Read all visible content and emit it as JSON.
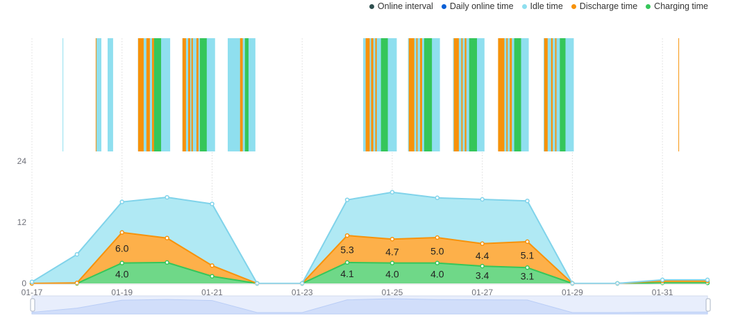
{
  "legend": [
    {
      "name": "Online interval",
      "color": "#2f4f4f"
    },
    {
      "name": "Daily online time",
      "color": "#0a5fd6"
    },
    {
      "name": "Idle time",
      "color": "#8fdfef"
    },
    {
      "name": "Discharge time",
      "color": "#f7920a"
    },
    {
      "name": "Charging time",
      "color": "#35c65a"
    }
  ],
  "chart_data": {
    "type": "area",
    "stacked": true,
    "categories": [
      "01-17",
      "01-18",
      "01-19",
      "01-20",
      "01-21",
      "01-22",
      "01-23",
      "01-24",
      "01-25",
      "01-26",
      "01-27",
      "01-28",
      "01-29",
      "01-30",
      "01-31",
      "02-01"
    ],
    "x_tick_labels": [
      "01-17",
      "01-19",
      "01-21",
      "01-23",
      "01-25",
      "01-27",
      "01-29",
      "01-31"
    ],
    "y_ticks": [
      "0",
      "12",
      "24"
    ],
    "ylim": [
      0,
      24
    ],
    "grid": "vertical",
    "legend_position": "top-right",
    "series": [
      {
        "name": "Charging time",
        "color": "#35c65a",
        "fill": "#6fd888",
        "values": [
          0,
          0,
          4.0,
          4.1,
          1.4,
          0,
          0,
          4.1,
          4.0,
          4.0,
          3.4,
          3.1,
          0,
          0,
          0.1,
          0.1
        ],
        "labels": [
          null,
          null,
          "4.0",
          null,
          null,
          null,
          null,
          "4.1",
          "4.0",
          "4.0",
          "3.4",
          "3.1",
          null,
          null,
          null,
          null
        ]
      },
      {
        "name": "Discharge time",
        "color": "#f7920a",
        "fill": "#fdb04a",
        "values": [
          0,
          0.1,
          6.0,
          4.8,
          2.1,
          0,
          0,
          5.3,
          4.7,
          5.0,
          4.4,
          5.1,
          0,
          0,
          0.4,
          0.4
        ],
        "labels": [
          null,
          null,
          "6.0",
          null,
          null,
          null,
          null,
          "5.3",
          "4.7",
          "5.0",
          "4.4",
          "5.1",
          null,
          null,
          null,
          null
        ]
      },
      {
        "name": "Idle time",
        "color": "#80d3ea",
        "fill": "#b0e9f4",
        "values": [
          0.3,
          5.6,
          6.0,
          8.0,
          12.1,
          0,
          0,
          7.0,
          9.2,
          7.8,
          8.7,
          8.0,
          0,
          0,
          0.2,
          0.2
        ],
        "labels": []
      }
    ],
    "online_intervals": [
      [
        "01-17 16:20",
        "01-17 16:40",
        "idle"
      ],
      [
        "01-18 10:00",
        "01-18 13:00",
        "idle"
      ],
      [
        "01-18 10:00",
        "01-18 10:15",
        "discharge"
      ],
      [
        "01-18 16:20",
        "01-18 19:15",
        "idle"
      ],
      [
        "01-19 08:30",
        "01-20 01:40",
        "idle"
      ],
      [
        "01-19 08:34",
        "01-19 11:32",
        "discharge"
      ],
      [
        "01-19 13:00",
        "01-19 14:50",
        "discharge"
      ],
      [
        "01-19 16:00",
        "01-19 17:05",
        "discharge"
      ],
      [
        "01-19 17:05",
        "01-19 20:50",
        "charging"
      ],
      [
        "01-20 08:10",
        "01-21 01:35",
        "idle"
      ],
      [
        "01-20 08:14",
        "01-20 10:05",
        "discharge"
      ],
      [
        "01-20 11:14",
        "01-20 12:20",
        "discharge"
      ],
      [
        "01-20 13:00",
        "01-20 13:45",
        "discharge"
      ],
      [
        "01-20 15:40",
        "01-20 16:45",
        "discharge"
      ],
      [
        "01-20 17:30",
        "01-20 21:10",
        "charging"
      ],
      [
        "01-21 08:20",
        "01-21 23:05",
        "idle"
      ],
      [
        "01-21 14:55",
        "01-21 16:20",
        "discharge"
      ],
      [
        "01-21 17:30",
        "01-21 19:25",
        "charging"
      ],
      [
        "01-24 08:30",
        "01-25 02:25",
        "idle"
      ],
      [
        "01-24 09:50",
        "01-24 12:00",
        "discharge"
      ],
      [
        "01-24 12:45",
        "01-24 13:55",
        "discharge"
      ],
      [
        "01-24 15:00",
        "01-24 15:45",
        "discharge"
      ],
      [
        "01-24 18:00",
        "01-24 21:40",
        "charging"
      ],
      [
        "01-25 08:25",
        "01-26 01:25",
        "idle"
      ],
      [
        "01-25 08:50",
        "01-25 11:45",
        "discharge"
      ],
      [
        "01-25 12:50",
        "01-25 13:30",
        "discharge"
      ],
      [
        "01-25 14:50",
        "01-25 15:55",
        "discharge"
      ],
      [
        "01-25 17:00",
        "01-25 21:10",
        "charging"
      ],
      [
        "01-26 08:25",
        "01-27 01:10",
        "idle"
      ],
      [
        "01-26 08:50",
        "01-26 11:30",
        "discharge"
      ],
      [
        "01-26 12:50",
        "01-26 13:30",
        "discharge"
      ],
      [
        "01-26 14:40",
        "01-26 15:30",
        "discharge"
      ],
      [
        "01-26 17:00",
        "01-26 21:10",
        "charging"
      ],
      [
        "01-27 08:25",
        "01-28 00:45",
        "idle"
      ],
      [
        "01-27 08:25",
        "01-27 11:45",
        "discharge"
      ],
      [
        "01-27 12:50",
        "01-27 13:30",
        "discharge"
      ],
      [
        "01-27 14:40",
        "01-27 15:45",
        "discharge"
      ],
      [
        "01-27 17:00",
        "01-27 20:40",
        "charging"
      ],
      [
        "01-28 08:40",
        "01-29 00:45",
        "idle"
      ],
      [
        "01-28 09:00",
        "01-28 10:50",
        "discharge"
      ],
      [
        "01-28 12:40",
        "01-28 13:30",
        "discharge"
      ],
      [
        "01-28 14:50",
        "01-28 15:30",
        "discharge"
      ],
      [
        "01-28 17:20",
        "01-28 20:20",
        "charging"
      ],
      [
        "01-31 08:30",
        "01-31 08:50",
        "discharge"
      ]
    ]
  }
}
